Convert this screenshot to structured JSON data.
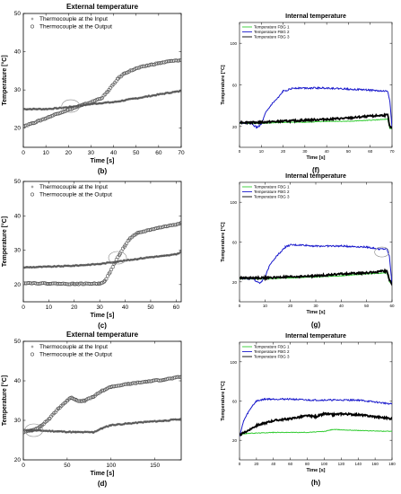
{
  "chart_data": [
    {
      "id": "b",
      "type": "line",
      "title": "External temperature",
      "xlabel": "Time [s]",
      "ylabel": "Temperature [°C]",
      "caption": "(b)",
      "xlim": [
        0,
        70
      ],
      "ylim": [
        15,
        50
      ],
      "xticks": [
        0,
        10,
        20,
        30,
        40,
        50,
        60,
        70
      ],
      "yticks": [
        20,
        30,
        40,
        50
      ],
      "legend_position": "top-left",
      "grid": false,
      "annotation": {
        "type": "ellipse",
        "x": 21,
        "y": 25.8
      },
      "series": [
        {
          "name": "Thermocouple at the Input",
          "marker": "star",
          "color": "#555555",
          "x": [
            0,
            5,
            10,
            15,
            20,
            25,
            30,
            35,
            40,
            45,
            50,
            55,
            60,
            65,
            70
          ],
          "y": [
            25,
            25,
            25,
            25.2,
            25.5,
            25.9,
            26.3,
            26.6,
            26.8,
            27.3,
            27.8,
            28.3,
            28.8,
            29.3,
            29.7
          ]
        },
        {
          "name": "Thermocouple at the Output",
          "marker": "circle",
          "color": "#555555",
          "x": [
            0,
            5,
            10,
            15,
            20,
            25,
            30,
            35,
            38,
            42,
            45,
            50,
            55,
            60,
            65,
            70
          ],
          "y": [
            20.5,
            21.5,
            22.6,
            23.8,
            24.8,
            25.8,
            26.8,
            28,
            30,
            33,
            34.4,
            35.6,
            36.4,
            37,
            37.5,
            37.8
          ]
        }
      ]
    },
    {
      "id": "f",
      "type": "line",
      "title": "Internal temperature",
      "xlabel": "Time [s]",
      "ylabel": "Temperature [°C]",
      "caption": "(f)",
      "xlim": [
        0,
        70
      ],
      "ylim": [
        0,
        120
      ],
      "xticks": [
        0,
        10,
        20,
        30,
        40,
        50,
        60,
        70
      ],
      "yticks": [
        20,
        60,
        100
      ],
      "legend_position": "top-left",
      "grid": false,
      "series": [
        {
          "name": "Temperature FBG 1",
          "color": "#33cc33",
          "x": [
            0,
            10,
            20,
            30,
            40,
            50,
            60,
            68,
            69,
            70
          ],
          "y": [
            23,
            23,
            24,
            24,
            25,
            25,
            26,
            27,
            18,
            18
          ]
        },
        {
          "name": "Temperature FBG 2",
          "color": "#1a1acc",
          "x": [
            0,
            5,
            8,
            10,
            12,
            15,
            18,
            20,
            25,
            30,
            40,
            50,
            60,
            65,
            68,
            69,
            70
          ],
          "y": [
            24,
            23,
            19,
            22,
            33,
            42,
            48,
            54,
            57,
            57,
            57,
            56,
            55,
            54,
            54,
            45,
            18
          ]
        },
        {
          "name": "Temperature FBG 3",
          "color": "#000000",
          "x": [
            0,
            10,
            20,
            30,
            40,
            50,
            60,
            68,
            69,
            70
          ],
          "y": [
            24,
            24,
            25,
            26,
            27,
            28,
            30,
            31,
            20,
            18
          ]
        }
      ]
    },
    {
      "id": "c",
      "type": "line",
      "title": "",
      "xlabel": "Time [s]",
      "ylabel": "Temperature [°C]",
      "caption": "(c)",
      "xlim": [
        0,
        62
      ],
      "ylim": [
        15,
        50
      ],
      "xticks": [
        0,
        10,
        20,
        30,
        40,
        50,
        60
      ],
      "yticks": [
        20,
        30,
        40,
        50
      ],
      "legend_position": "top-left",
      "grid": false,
      "annotation": {
        "type": "ellipse",
        "x": 37,
        "y": 27.8
      },
      "series": [
        {
          "name": "Thermocouple at the Input",
          "marker": "star",
          "color": "#555555",
          "x": [
            0,
            10,
            20,
            30,
            35,
            40,
            45,
            50,
            55,
            60,
            62
          ],
          "y": [
            25,
            25.2,
            25.5,
            26,
            26.5,
            27,
            27.5,
            28,
            28.3,
            28.8,
            29.5
          ]
        },
        {
          "name": "Thermocouple at the Output",
          "marker": "circle",
          "color": "#555555",
          "x": [
            0,
            10,
            20,
            30,
            32,
            34,
            36,
            38,
            40,
            42,
            45,
            50,
            55,
            60,
            62
          ],
          "y": [
            20.5,
            20.3,
            20.2,
            20.3,
            21,
            23.5,
            26.5,
            29,
            31.5,
            33.5,
            35,
            36,
            36.8,
            37.5,
            38
          ]
        }
      ]
    },
    {
      "id": "g",
      "type": "line",
      "title": "Internal temperature",
      "xlabel": "Time [s]",
      "ylabel": "Temperature [°C]",
      "caption": "(g)",
      "xlim": [
        0,
        60
      ],
      "ylim": [
        0,
        120
      ],
      "xticks": [
        0,
        10,
        20,
        30,
        40,
        50,
        60
      ],
      "yticks": [
        20,
        60,
        100
      ],
      "legend_position": "top-left",
      "grid": false,
      "annotation": {
        "type": "ellipse",
        "x": 56,
        "y": 50
      },
      "series": [
        {
          "name": "Temperature FBG 1",
          "color": "#33cc33",
          "x": [
            0,
            10,
            20,
            30,
            40,
            50,
            58,
            59,
            60
          ],
          "y": [
            23,
            23,
            24,
            25,
            26,
            28,
            29,
            20,
            18
          ]
        },
        {
          "name": "Temperature FBG 2",
          "color": "#1a1acc",
          "x": [
            0,
            5,
            8,
            10,
            12,
            15,
            18,
            20,
            25,
            30,
            40,
            50,
            55,
            58,
            59,
            60
          ],
          "y": [
            24,
            23,
            19,
            24,
            38,
            47,
            55,
            57,
            57,
            56,
            56,
            55,
            53,
            53,
            45,
            18
          ]
        },
        {
          "name": "Temperature FBG 3",
          "color": "#000000",
          "x": [
            0,
            10,
            20,
            30,
            40,
            50,
            58,
            59,
            60
          ],
          "y": [
            24,
            24,
            25,
            26,
            28,
            29,
            31,
            22,
            18
          ]
        }
      ]
    },
    {
      "id": "d",
      "type": "line",
      "title": "External temperature",
      "xlabel": "Time [s]",
      "ylabel": "Temperature [°C]",
      "caption": "(d)",
      "xlim": [
        0,
        180
      ],
      "ylim": [
        20,
        50
      ],
      "xticks": [
        0,
        50,
        100,
        150
      ],
      "yticks": [
        20,
        30,
        40,
        50
      ],
      "legend_position": "top-left",
      "grid": false,
      "annotation": {
        "type": "ellipse",
        "x": 12,
        "y": 27.5
      },
      "series": [
        {
          "name": "Thermocouple at the Input",
          "marker": "star",
          "color": "#555555",
          "x": [
            0,
            20,
            40,
            60,
            80,
            90,
            100,
            120,
            140,
            160,
            180
          ],
          "y": [
            27.5,
            27.4,
            27.2,
            27,
            27,
            28,
            28.8,
            29.2,
            29.6,
            29.9,
            30.3
          ]
        },
        {
          "name": "Thermocouple at the Output",
          "marker": "circle",
          "color": "#555555",
          "x": [
            0,
            10,
            20,
            30,
            40,
            50,
            55,
            60,
            65,
            70,
            80,
            90,
            100,
            120,
            140,
            160,
            180
          ],
          "y": [
            27,
            27.5,
            28.5,
            30.5,
            33,
            35,
            35.8,
            35.2,
            34.8,
            35,
            36,
            37.5,
            38.5,
            39.2,
            39.8,
            40.3,
            41
          ]
        }
      ]
    },
    {
      "id": "h",
      "type": "line",
      "title": "Internal temperature",
      "xlabel": "Time [s]",
      "ylabel": "Temperature [°C]",
      "caption": "(h)",
      "xlim": [
        0,
        180
      ],
      "ylim": [
        0,
        120
      ],
      "xticks": [
        0,
        20,
        40,
        60,
        80,
        100,
        120,
        140,
        160,
        180
      ],
      "yticks": [
        20,
        60,
        100
      ],
      "legend_position": "top-left",
      "grid": false,
      "series": [
        {
          "name": "Temperature FBG 1",
          "color": "#33cc33",
          "x": [
            0,
            10,
            40,
            80,
            100,
            110,
            140,
            180
          ],
          "y": [
            26,
            27,
            28,
            28,
            29,
            31,
            30,
            29
          ]
        },
        {
          "name": "Temperature FBG 2",
          "color": "#1a1acc",
          "x": [
            0,
            5,
            10,
            15,
            20,
            30,
            40,
            60,
            80,
            100,
            120,
            140,
            160,
            180
          ],
          "y": [
            24,
            40,
            48,
            55,
            60,
            62,
            62,
            62,
            61,
            61,
            61,
            61,
            59,
            57
          ]
        },
        {
          "name": "Temperature FBG 3",
          "color": "#000000",
          "x": [
            0,
            10,
            20,
            40,
            60,
            80,
            90,
            100,
            110,
            120,
            140,
            160,
            180
          ],
          "y": [
            25,
            30,
            35,
            40,
            42,
            45,
            44,
            47,
            46,
            47,
            46,
            44,
            42
          ]
        }
      ]
    }
  ]
}
